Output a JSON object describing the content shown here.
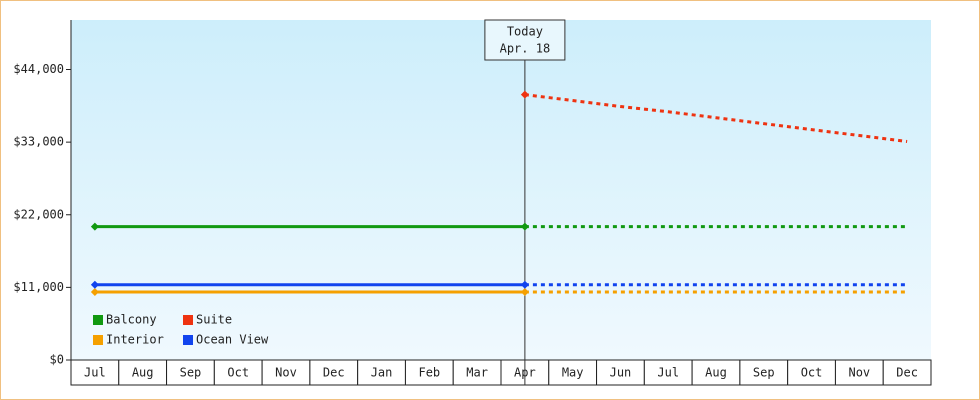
{
  "chart_data": {
    "type": "line",
    "categories": [
      "Jul",
      "Aug",
      "Sep",
      "Oct",
      "Nov",
      "Dec",
      "Jan",
      "Feb",
      "Mar",
      "Apr",
      "May",
      "Jun",
      "Jul",
      "Aug",
      "Sep",
      "Oct",
      "Nov",
      "Dec"
    ],
    "today": {
      "title": "Today",
      "label": "Apr. 18",
      "category": "Apr"
    },
    "series": [
      {
        "name": "Balcony",
        "color": "#119911",
        "values": [
          20200,
          20200,
          20200,
          20200,
          20200,
          20200,
          20200,
          20200,
          20200,
          20200,
          20200,
          20200,
          20200,
          20200,
          20200,
          20200,
          20200,
          20200
        ]
      },
      {
        "name": "Suite",
        "color": "#ee3311",
        "values": [
          null,
          null,
          null,
          null,
          null,
          null,
          null,
          null,
          null,
          40200,
          39300,
          38400,
          37600,
          36700,
          35800,
          34900,
          34000,
          33100
        ]
      },
      {
        "name": "Interior",
        "color": "#f5a000",
        "values": [
          10300,
          10300,
          10300,
          10300,
          10300,
          10300,
          10300,
          10300,
          10300,
          10300,
          10300,
          10300,
          10300,
          10300,
          10300,
          10300,
          10300,
          10300
        ]
      },
      {
        "name": "Ocean View",
        "color": "#1144ee",
        "values": [
          11400,
          11400,
          11400,
          11400,
          11400,
          11400,
          11400,
          11400,
          11400,
          11400,
          11400,
          11400,
          11400,
          11400,
          11400,
          11400,
          11400,
          11400
        ]
      }
    ],
    "ylim": [
      0,
      51500
    ],
    "yticks": [
      {
        "value": 0,
        "label": "$0"
      },
      {
        "value": 11000,
        "label": "$11,000"
      },
      {
        "value": 22000,
        "label": "$22,000"
      },
      {
        "value": 33000,
        "label": "$33,000"
      },
      {
        "value": 44000,
        "label": "$44,000"
      }
    ],
    "legend": "bottom-left"
  }
}
